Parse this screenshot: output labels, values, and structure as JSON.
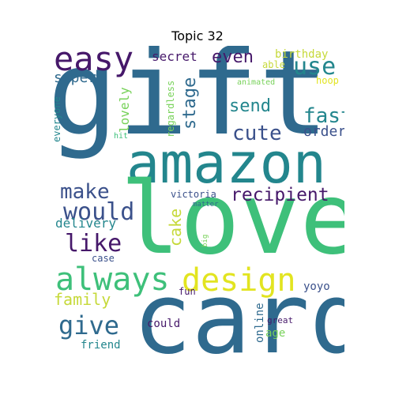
{
  "title": "Topic 32",
  "colors": {
    "dark_purple": "#46186a",
    "indigo": "#3b518b",
    "steel_blue": "#2f6a8e",
    "teal": "#23868d",
    "green": "#3ec07a",
    "light_green": "#78d25a",
    "yellow": "#e2e420",
    "light_yellow": "#c6d93a"
  },
  "words": {
    "gift": "gift",
    "love": "love",
    "card": "card",
    "amazon": "amazon",
    "always": "always",
    "design": "design",
    "easy": "easy",
    "would": "would",
    "make": "make",
    "recipient": "recipient",
    "like": "like",
    "give": "give",
    "use": "use",
    "even": "even",
    "secret": "secret",
    "super": "super",
    "fast": "fast",
    "send": "send",
    "cute": "cute",
    "stage": "stage",
    "cake": "cake",
    "family": "family",
    "delivery": "delivery",
    "order": "order",
    "lovely": "lovely",
    "birthday": "birthday",
    "able": "able",
    "hoop": "hoop",
    "animated": "animated",
    "regardless": "regardless",
    "everyone": "everyone",
    "hit": "hit",
    "victoria": "victoria",
    "matter": "matter",
    "big": "big",
    "case": "case",
    "fun": "fun",
    "yoyo": "yoyo",
    "could": "could",
    "online": "online",
    "great": "great",
    "age": "age",
    "friend": "friend"
  }
}
